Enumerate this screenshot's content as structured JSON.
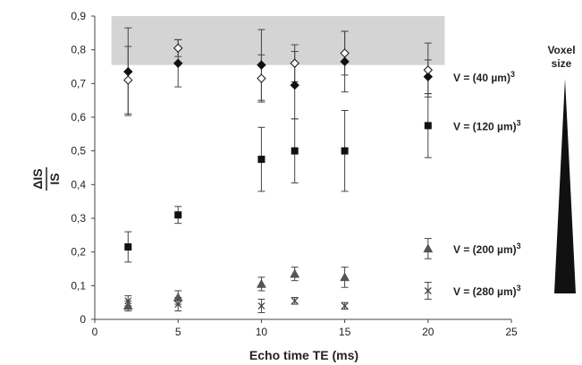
{
  "chart_data": {
    "type": "scatter",
    "xlabel": "Echo time TE (ms)",
    "ylabel_num": "ΔIS",
    "ylabel_den": "IS",
    "xlim": [
      0,
      25
    ],
    "ylim": [
      0,
      0.9
    ],
    "x_ticks": [
      "0",
      "5",
      "10",
      "15",
      "20",
      "25"
    ],
    "y_ticks": [
      "0",
      "0,1",
      "0,2",
      "0,3",
      "0,4",
      "0,5",
      "0,6",
      "0,7",
      "0,8",
      "0,9"
    ],
    "highlight_band": {
      "x": [
        1,
        21
      ],
      "y": [
        0.755,
        0.9
      ],
      "color": "#d4d4d4"
    },
    "series": [
      {
        "marker": "diamond-filled",
        "label_main": "V = (40 µm)",
        "label_sup": "3",
        "points": [
          {
            "x": 2,
            "y": 0.735,
            "err": 0.13
          },
          {
            "x": 5,
            "y": 0.76,
            "err": 0.07
          },
          {
            "x": 10,
            "y": 0.755,
            "err": 0.105
          },
          {
            "x": 12,
            "y": 0.695,
            "err": 0.1
          },
          {
            "x": 15,
            "y": 0.765,
            "err": 0.09
          },
          {
            "x": 20,
            "y": 0.72,
            "err": 0.05
          }
        ]
      },
      {
        "marker": "diamond-open",
        "label_main": "",
        "label_sup": "",
        "points": [
          {
            "x": 2,
            "y": 0.71,
            "err": 0.1
          },
          {
            "x": 5,
            "y": 0.805,
            "err": 0.025
          },
          {
            "x": 10,
            "y": 0.715,
            "err": 0.07
          },
          {
            "x": 12,
            "y": 0.76,
            "err": 0.055
          },
          {
            "x": 15,
            "y": 0.79,
            "err": 0.065
          },
          {
            "x": 20,
            "y": 0.74,
            "err": 0.08
          }
        ]
      },
      {
        "marker": "square",
        "label_main": "V = (120 µm)",
        "label_sup": "3",
        "points": [
          {
            "x": 2,
            "y": 0.215,
            "err": 0.045
          },
          {
            "x": 5,
            "y": 0.31,
            "err": 0.025
          },
          {
            "x": 10,
            "y": 0.475,
            "err": 0.095
          },
          {
            "x": 12,
            "y": 0.5,
            "err": 0.095
          },
          {
            "x": 15,
            "y": 0.5,
            "err": 0.12
          },
          {
            "x": 20,
            "y": 0.575,
            "err": 0.095
          }
        ]
      },
      {
        "marker": "triangle",
        "label_main": "V = (200 µm)",
        "label_sup": "3",
        "points": [
          {
            "x": 2,
            "y": 0.04,
            "err": 0.015
          },
          {
            "x": 5,
            "y": 0.065,
            "err": 0.02
          },
          {
            "x": 10,
            "y": 0.105,
            "err": 0.02
          },
          {
            "x": 12,
            "y": 0.135,
            "err": 0.02
          },
          {
            "x": 15,
            "y": 0.125,
            "err": 0.03
          },
          {
            "x": 20,
            "y": 0.21,
            "err": 0.03
          }
        ]
      },
      {
        "marker": "x",
        "label_main": "V = (280 µm)",
        "label_sup": "3",
        "points": [
          {
            "x": 2,
            "y": 0.055,
            "err": 0.015
          },
          {
            "x": 5,
            "y": 0.045,
            "err": 0.02
          },
          {
            "x": 10,
            "y": 0.04,
            "err": 0.02
          },
          {
            "x": 12,
            "y": 0.055,
            "err": 0.01
          },
          {
            "x": 15,
            "y": 0.04,
            "err": 0.01
          },
          {
            "x": 20,
            "y": 0.085,
            "err": 0.025
          }
        ]
      }
    ],
    "voxel_label_line1": "Voxel",
    "voxel_label_line2": "size"
  }
}
